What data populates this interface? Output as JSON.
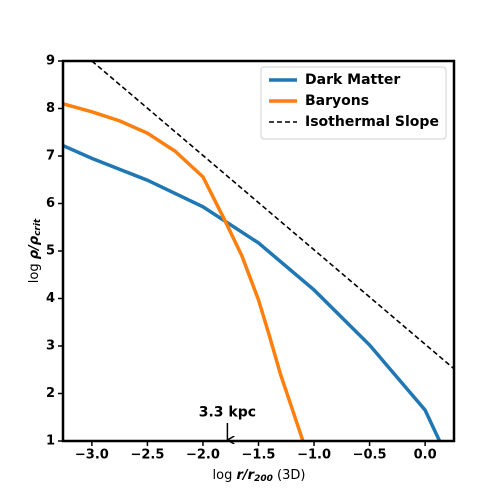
{
  "chart_data": {
    "type": "line",
    "xlabel": [
      "log ",
      "r",
      "/",
      "r",
      "200",
      " (3D)"
    ],
    "ylabel": [
      "log ",
      "ρ",
      "/",
      "ρ",
      "crit"
    ],
    "xlim": [
      -3.26,
      0.26
    ],
    "ylim": [
      1,
      9
    ],
    "xticks": [
      {
        "value": -3.0,
        "label": "−3.0"
      },
      {
        "value": -2.5,
        "label": "−2.5"
      },
      {
        "value": -2.0,
        "label": "−2.0"
      },
      {
        "value": -1.5,
        "label": "−1.5"
      },
      {
        "value": -1.0,
        "label": "−1.0"
      },
      {
        "value": -0.5,
        "label": "−0.5"
      },
      {
        "value": 0.0,
        "label": "0.0"
      }
    ],
    "yticks": [
      1,
      2,
      3,
      4,
      5,
      6,
      7,
      8,
      9
    ],
    "legend": "upper right",
    "series": [
      {
        "name": "Dark Matter",
        "color": "#1f77b4",
        "dash": "solid",
        "x": [
          -3.26,
          -3.0,
          -2.5,
          -2.0,
          -1.5,
          -1.0,
          -0.5,
          0.0,
          0.13
        ],
        "values": [
          7.22,
          6.95,
          6.49,
          5.93,
          5.17,
          4.18,
          3.02,
          1.65,
          1.0
        ]
      },
      {
        "name": "Baryons",
        "color": "#ff7f0e",
        "dash": "solid",
        "x": [
          -3.26,
          -3.0,
          -2.75,
          -2.5,
          -2.25,
          -2.0,
          -1.8,
          -1.65,
          -1.5,
          -1.4,
          -1.3,
          -1.2,
          -1.1
        ],
        "values": [
          8.1,
          7.93,
          7.74,
          7.48,
          7.1,
          6.56,
          5.63,
          4.9,
          3.97,
          3.2,
          2.39,
          1.7,
          1.0
        ]
      },
      {
        "name": "Isothermal Slope",
        "color": "#000000",
        "dash": "dashed",
        "x": [
          -3.0,
          0.26
        ],
        "values": [
          9.0,
          2.52
        ]
      }
    ],
    "annotation": {
      "text": "3.3 kpc",
      "x": -1.78,
      "y": 1.6,
      "arrow_tail": 1.38,
      "arrow_head": 1.0
    }
  }
}
